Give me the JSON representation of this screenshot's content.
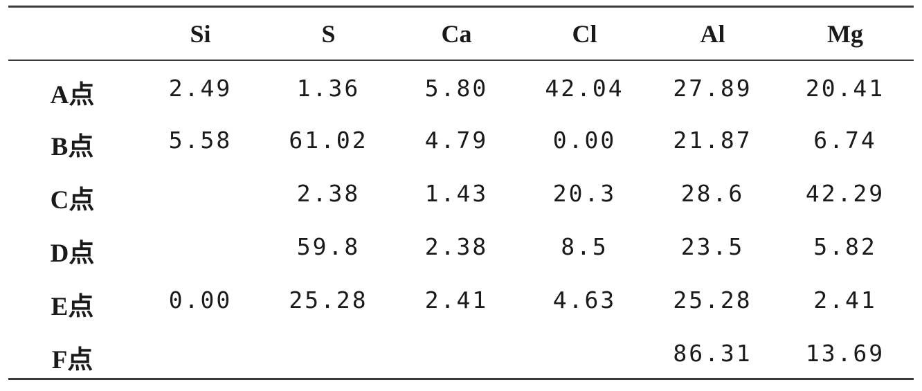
{
  "table": {
    "columns": [
      "",
      "Si",
      "S",
      "Ca",
      "Cl",
      "Al",
      "Mg"
    ],
    "rows": [
      {
        "label": "A点",
        "values": [
          "2.49",
          "1.36",
          "5.80",
          "42.04",
          "27.89",
          "20.41"
        ]
      },
      {
        "label": "B点",
        "values": [
          "5.58",
          "61.02",
          "4.79",
          "0.00",
          "21.87",
          "6.74"
        ]
      },
      {
        "label": "C点",
        "values": [
          "",
          "2.38",
          "1.43",
          "20.3",
          "28.6",
          "42.29"
        ]
      },
      {
        "label": "D点",
        "values": [
          "",
          "59.8",
          "2.38",
          "8.5",
          "23.5",
          "5.82"
        ]
      },
      {
        "label": "E点",
        "values": [
          "0.00",
          "25.28",
          "2.41",
          "4.63",
          "25.28",
          "2.41"
        ]
      },
      {
        "label": "F点",
        "values": [
          "",
          "",
          "",
          "",
          "86.31",
          "13.69"
        ]
      }
    ]
  }
}
